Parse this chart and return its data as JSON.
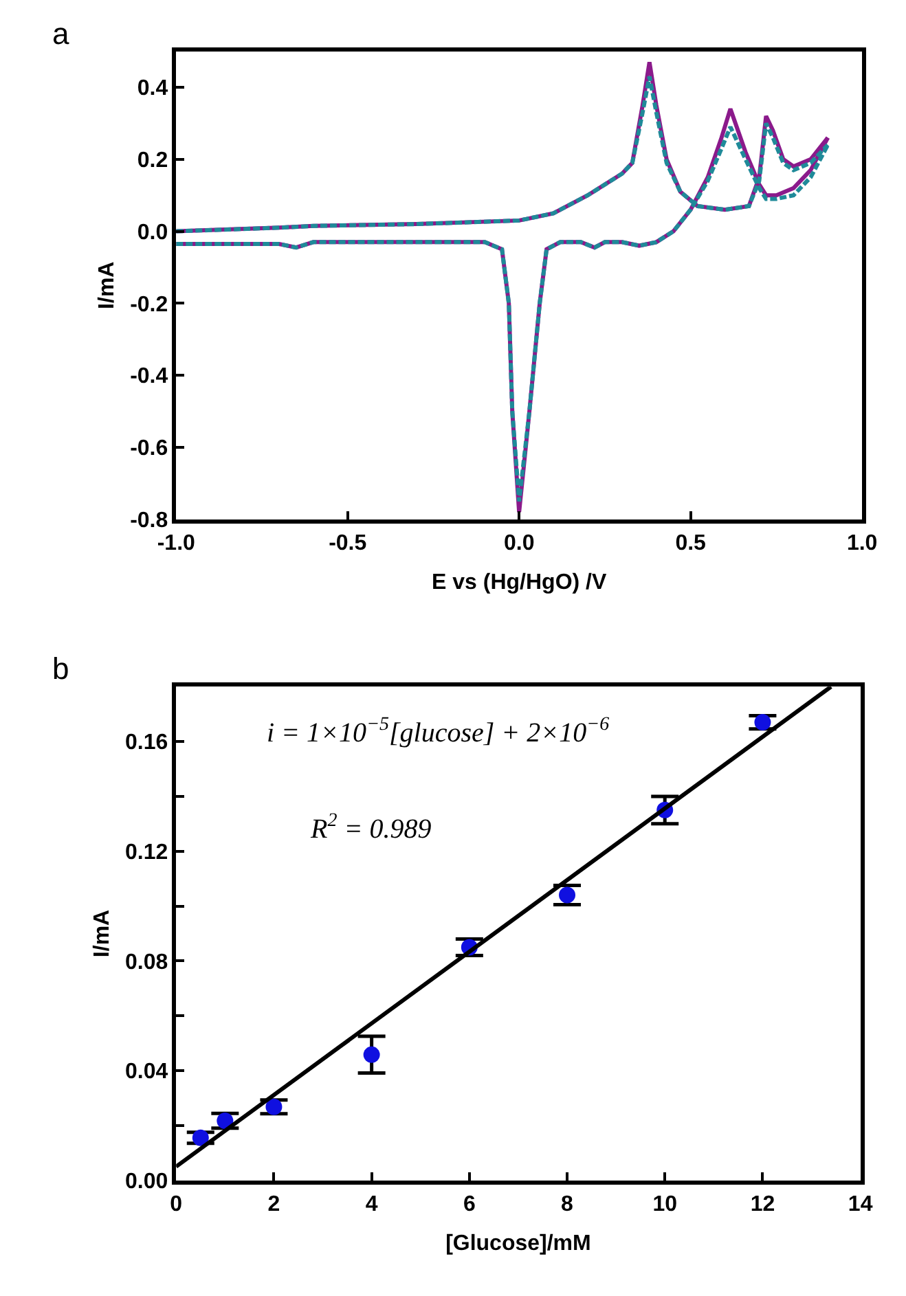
{
  "chart_data": [
    {
      "type": "line",
      "title": "a",
      "xlabel": "E vs (Hg/HgO) /V",
      "ylabel": "I/mA",
      "xlim": [
        -1.0,
        1.0
      ],
      "ylim": [
        -0.8,
        0.5
      ],
      "xticks": [
        {
          "value": -1.0,
          "label": "-1.0"
        },
        -0.5,
        {
          "value": 0,
          "label": "0.0"
        },
        0.5,
        {
          "value": 1.0,
          "label": "1.0"
        }
      ],
      "yticks": [
        0.4,
        0.2,
        {
          "value": 0,
          "label": "0.0"
        },
        -0.2,
        -0.4,
        -0.6,
        -0.8
      ],
      "marker": "none",
      "series": [
        {
          "color": "#8b1a8b",
          "line_style": "solid",
          "x": [
            -1.0,
            -0.7,
            -0.65,
            -0.6,
            -0.3,
            -0.1,
            -0.05,
            -0.03,
            -0.02,
            0.0,
            0.03,
            0.06,
            0.08,
            0.12,
            0.18,
            0.22,
            0.25,
            0.3,
            0.35,
            0.4,
            0.45,
            0.5,
            0.55,
            0.59,
            0.616,
            0.66,
            0.7,
            0.72,
            0.75,
            0.8,
            0.85,
            0.9
          ],
          "values": [
            -0.035,
            -0.035,
            -0.045,
            -0.03,
            -0.03,
            -0.03,
            -0.05,
            -0.2,
            -0.5,
            -0.78,
            -0.5,
            -0.2,
            -0.05,
            -0.03,
            -0.03,
            -0.045,
            -0.03,
            -0.03,
            -0.04,
            -0.03,
            0.0,
            0.06,
            0.15,
            0.26,
            0.34,
            0.22,
            0.13,
            0.1,
            0.1,
            0.12,
            0.17,
            0.26
          ]
        },
        {
          "color": "#8b1a8b",
          "line_style": "solid",
          "x": [
            -1.0,
            -0.7,
            -0.6,
            -0.3,
            0.0,
            0.1,
            0.2,
            0.3,
            0.33,
            0.36,
            0.38,
            0.4,
            0.43,
            0.47,
            0.52,
            0.6,
            0.67,
            0.7,
            0.72,
            0.74,
            0.77,
            0.8,
            0.85,
            0.9
          ],
          "values": [
            0.0,
            0.01,
            0.015,
            0.02,
            0.03,
            0.05,
            0.1,
            0.16,
            0.19,
            0.35,
            0.47,
            0.35,
            0.2,
            0.11,
            0.07,
            0.06,
            0.07,
            0.15,
            0.32,
            0.28,
            0.2,
            0.18,
            0.2,
            0.26
          ]
        },
        {
          "color": "#1f8a99",
          "line_style": "dashed",
          "x": [
            -1.0,
            -0.7,
            -0.65,
            -0.6,
            -0.3,
            -0.1,
            -0.05,
            -0.03,
            -0.02,
            0.0,
            0.03,
            0.06,
            0.08,
            0.12,
            0.18,
            0.22,
            0.25,
            0.3,
            0.35,
            0.4,
            0.45,
            0.5,
            0.55,
            0.59,
            0.616,
            0.66,
            0.7,
            0.72,
            0.75,
            0.8,
            0.85,
            0.9
          ],
          "values": [
            -0.035,
            -0.035,
            -0.045,
            -0.03,
            -0.03,
            -0.03,
            -0.05,
            -0.2,
            -0.5,
            -0.75,
            -0.5,
            -0.2,
            -0.05,
            -0.03,
            -0.03,
            -0.045,
            -0.03,
            -0.03,
            -0.04,
            -0.03,
            0.0,
            0.06,
            0.14,
            0.23,
            0.29,
            0.2,
            0.12,
            0.09,
            0.09,
            0.1,
            0.15,
            0.24
          ]
        },
        {
          "color": "#1f8a99",
          "line_style": "dashed",
          "x": [
            -1.0,
            -0.7,
            -0.6,
            -0.3,
            0.0,
            0.1,
            0.2,
            0.3,
            0.33,
            0.36,
            0.38,
            0.4,
            0.43,
            0.47,
            0.52,
            0.6,
            0.67,
            0.7,
            0.72,
            0.74,
            0.77,
            0.8,
            0.85,
            0.9
          ],
          "values": [
            0.0,
            0.01,
            0.015,
            0.02,
            0.03,
            0.05,
            0.1,
            0.16,
            0.19,
            0.33,
            0.43,
            0.33,
            0.19,
            0.11,
            0.07,
            0.06,
            0.07,
            0.14,
            0.3,
            0.26,
            0.19,
            0.17,
            0.19,
            0.24
          ]
        }
      ]
    },
    {
      "type": "scatter",
      "title": "b",
      "xlabel": "[Glucose]/mM",
      "ylabel": "I/mA",
      "xlim": [
        0,
        14
      ],
      "ylim": [
        0,
        0.18
      ],
      "xticks": [
        0,
        2,
        4,
        6,
        8,
        10,
        12,
        14
      ],
      "yticks": [
        {
          "value": 0,
          "label": "0.00"
        },
        {
          "value": 0.02,
          "label": null
        },
        0.04,
        {
          "value": 0.06,
          "label": null
        },
        0.08,
        {
          "value": 0.1,
          "label": null
        },
        0.12,
        {
          "value": 0.14,
          "label": null
        },
        0.16
      ],
      "marker": "circle",
      "annotations": [
        "i = 1×10$^{−5}$[glucose] + 2×10$^{−6}$",
        "R$^{2}$ = 0.989"
      ],
      "x": [
        0.5,
        1,
        2,
        4,
        6,
        8,
        10,
        12
      ],
      "series": [
        {
          "color": "#1010e0",
          "values": [
            0.0155,
            0.0217,
            0.0268,
            0.0458,
            0.085,
            0.104,
            0.135,
            0.167
          ],
          "errors": [
            0.002,
            0.0027,
            0.0025,
            0.0067,
            0.003,
            0.0035,
            0.005,
            0.0024
          ]
        },
        {
          "type": "line",
          "color": "#000000",
          "line_style": "solid",
          "marker": "none",
          "x": [
            0,
            13.4
          ],
          "values": [
            0.005,
            0.18
          ]
        }
      ]
    }
  ]
}
